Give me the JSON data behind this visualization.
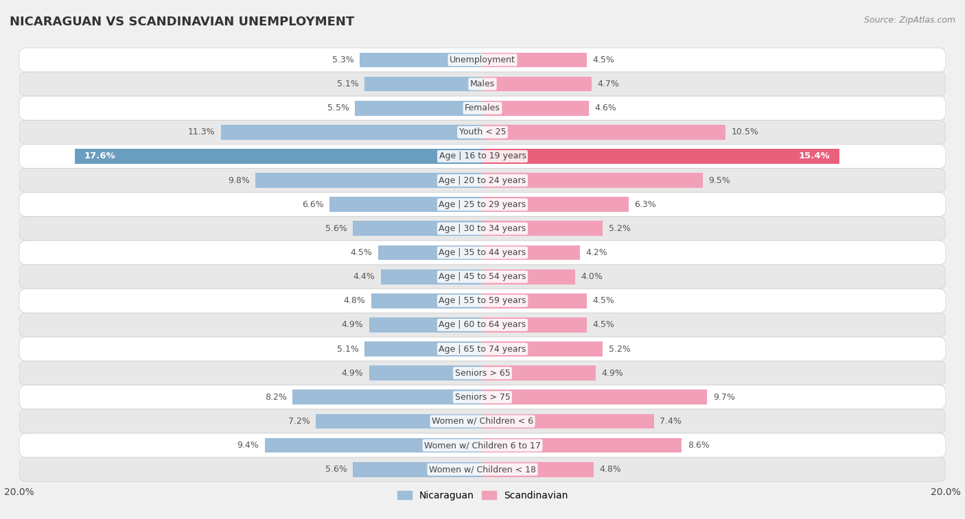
{
  "title": "NICARAGUAN VS SCANDINAVIAN UNEMPLOYMENT",
  "source": "Source: ZipAtlas.com",
  "categories": [
    "Unemployment",
    "Males",
    "Females",
    "Youth < 25",
    "Age | 16 to 19 years",
    "Age | 20 to 24 years",
    "Age | 25 to 29 years",
    "Age | 30 to 34 years",
    "Age | 35 to 44 years",
    "Age | 45 to 54 years",
    "Age | 55 to 59 years",
    "Age | 60 to 64 years",
    "Age | 65 to 74 years",
    "Seniors > 65",
    "Seniors > 75",
    "Women w/ Children < 6",
    "Women w/ Children 6 to 17",
    "Women w/ Children < 18"
  ],
  "nicaraguan": [
    5.3,
    5.1,
    5.5,
    11.3,
    17.6,
    9.8,
    6.6,
    5.6,
    4.5,
    4.4,
    4.8,
    4.9,
    5.1,
    4.9,
    8.2,
    7.2,
    9.4,
    5.6
  ],
  "scandinavian": [
    4.5,
    4.7,
    4.6,
    10.5,
    15.4,
    9.5,
    6.3,
    5.2,
    4.2,
    4.0,
    4.5,
    4.5,
    5.2,
    4.9,
    9.7,
    7.4,
    8.6,
    4.8
  ],
  "nicaraguan_color": "#9dbdd8",
  "scandinavian_color": "#f2a0b8",
  "nicaraguan_highlight_color": "#6a9ec0",
  "scandinavian_highlight_color": "#e8607a",
  "xlim": 20.0,
  "legend_nicaraguan": "Nicaraguan",
  "legend_scandinavian": "Scandinavian",
  "background_color": "#f0f0f0",
  "row_odd_color": "#ffffff",
  "row_even_color": "#e8e8e8",
  "label_color": "#555555",
  "category_color": "#444444",
  "title_color": "#333333"
}
